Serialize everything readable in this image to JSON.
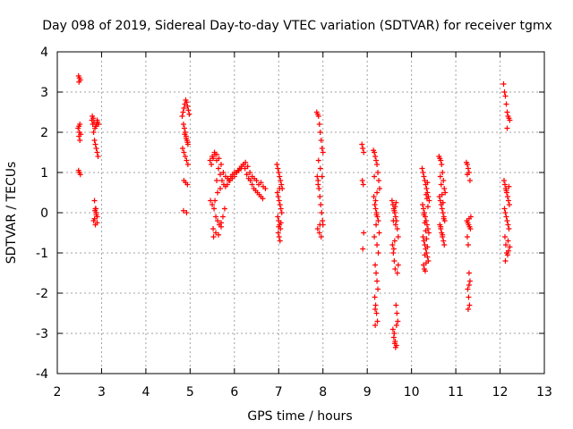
{
  "chart_data": {
    "type": "scatter",
    "title": "Day 098 of 2019, Sidereal Day-to-day VTEC variation (SDTVAR) for receiver tgmx",
    "xlabel": "GPS time / hours",
    "ylabel": "SDTVAR / TECUs",
    "xlim": [
      2,
      13
    ],
    "ylim": [
      -4,
      4
    ],
    "x_ticks": [
      "2",
      "3",
      "4",
      "5",
      "6",
      "7",
      "8",
      "9",
      "10",
      "11",
      "12",
      "13"
    ],
    "y_ticks": [
      "-4",
      "-3",
      "-2",
      "-1",
      "0",
      "1",
      "2",
      "3",
      "4"
    ],
    "grid": true,
    "marker": "plus",
    "color": "#ff0000",
    "series": [
      {
        "x": [
          2.48,
          2.5,
          2.52,
          2.49,
          2.51,
          2.47,
          2.5,
          2.53,
          2.49,
          2.51,
          2.48,
          2.5,
          2.52,
          2.49,
          2.78,
          2.8,
          2.82,
          2.84,
          2.86,
          2.88,
          2.9,
          2.92,
          2.79,
          2.81,
          2.83,
          2.85,
          2.87,
          2.89,
          2.91,
          2.84,
          2.86,
          2.88,
          2.9,
          2.82,
          2.86,
          2.9,
          2.85,
          2.88,
          2.84,
          2.87,
          2.9,
          2.93,
          4.82,
          4.84,
          4.86,
          4.88,
          4.9,
          4.92,
          4.94,
          4.96,
          4.98,
          4.85,
          4.87,
          4.89,
          4.91,
          4.93,
          4.95,
          4.83,
          4.86,
          4.89,
          4.92,
          4.95,
          4.88,
          4.91,
          4.94,
          4.86,
          4.9,
          4.94,
          4.85,
          4.92,
          5.45,
          5.5,
          5.55,
          5.6,
          5.65,
          5.7,
          5.75,
          5.8,
          5.85,
          5.9,
          5.95,
          6.0,
          6.05,
          6.1,
          6.15,
          6.2,
          6.25,
          6.3,
          6.35,
          6.4,
          6.45,
          6.5,
          6.55,
          6.6,
          6.65,
          6.7,
          5.48,
          5.52,
          5.56,
          5.6,
          5.64,
          5.68,
          5.72,
          5.76,
          5.8,
          5.84,
          5.88,
          5.92,
          5.96,
          6.0,
          6.04,
          6.08,
          6.12,
          6.16,
          6.2,
          6.24,
          6.28,
          6.32,
          6.36,
          6.4,
          6.44,
          6.48,
          6.52,
          6.56,
          6.6,
          6.64,
          5.5,
          5.54,
          5.58,
          5.62,
          5.66,
          5.7,
          5.74,
          5.78,
          5.52,
          5.58,
          5.64,
          5.7,
          5.56,
          5.62,
          5.68,
          5.46,
          5.53,
          5.6,
          6.96,
          6.98,
          7.0,
          7.02,
          7.04,
          7.06,
          7.08,
          6.97,
          6.99,
          7.01,
          7.03,
          7.05,
          7.07,
          6.98,
          7.0,
          7.02,
          7.04,
          6.99,
          7.01,
          7.03,
          7.05,
          7.0,
          7.02,
          7.86,
          7.88,
          7.9,
          7.92,
          7.94,
          7.96,
          7.98,
          8.0,
          7.87,
          7.89,
          7.91,
          7.93,
          7.95,
          7.97,
          7.99,
          7.88,
          7.92,
          7.96,
          8.0,
          7.9,
          7.94,
          7.98,
          7.89,
          7.93,
          8.88,
          8.9,
          8.92,
          8.89,
          8.91,
          8.9,
          8.92,
          9.14,
          9.16,
          9.18,
          9.2,
          9.22,
          9.24,
          9.26,
          9.28,
          9.15,
          9.17,
          9.19,
          9.21,
          9.23,
          9.25,
          9.27,
          9.16,
          9.18,
          9.2,
          9.22,
          9.24,
          9.17,
          9.19,
          9.21,
          9.23,
          9.18,
          9.2,
          9.22,
          9.16,
          9.19,
          9.22,
          9.25,
          9.18,
          9.21,
          9.56,
          9.58,
          9.6,
          9.62,
          9.64,
          9.66,
          9.68,
          9.7,
          9.57,
          9.59,
          9.61,
          9.63,
          9.65,
          9.67,
          9.69,
          9.58,
          9.6,
          9.62,
          9.64,
          9.66,
          9.59,
          9.61,
          9.63,
          9.65,
          9.6,
          9.62,
          9.64,
          9.61,
          9.63,
          9.66,
          9.68,
          9.7,
          10.24,
          10.26,
          10.28,
          10.3,
          10.32,
          10.34,
          10.36,
          10.38,
          10.4,
          10.25,
          10.27,
          10.29,
          10.31,
          10.33,
          10.35,
          10.37,
          10.39,
          10.26,
          10.28,
          10.3,
          10.32,
          10.34,
          10.36,
          10.38,
          10.27,
          10.29,
          10.31,
          10.33,
          10.35,
          10.37,
          10.28,
          10.3,
          10.32,
          10.34,
          10.36,
          10.3,
          10.33,
          10.36,
          10.62,
          10.64,
          10.66,
          10.68,
          10.7,
          10.72,
          10.74,
          10.76,
          10.63,
          10.65,
          10.67,
          10.69,
          10.71,
          10.73,
          10.75,
          10.64,
          10.66,
          10.68,
          10.7,
          10.72,
          10.74,
          10.65,
          10.67,
          10.69,
          10.71,
          10.73,
          10.66,
          10.7,
          11.24,
          11.26,
          11.28,
          11.3,
          11.32,
          11.34,
          11.25,
          11.27,
          11.29,
          11.31,
          11.33,
          11.26,
          11.28,
          11.3,
          11.32,
          11.27,
          11.29,
          11.31,
          11.28,
          11.3,
          11.26,
          11.3,
          12.08,
          12.1,
          12.12,
          12.14,
          12.16,
          12.18,
          12.2,
          12.22,
          12.09,
          12.11,
          12.13,
          12.15,
          12.17,
          12.19,
          12.21,
          12.1,
          12.12,
          12.14,
          12.16,
          12.18,
          12.2,
          12.11,
          12.13,
          12.15,
          12.17,
          12.19,
          12.12,
          12.16,
          12.2,
          12.14,
          12.18,
          12.22
        ],
        "y": [
          3.4,
          3.35,
          3.3,
          3.25,
          2.2,
          2.1,
          2.0,
          1.95,
          1.9,
          1.8,
          1.05,
          1.0,
          0.95,
          2.15,
          2.3,
          2.2,
          2.0,
          1.8,
          1.7,
          1.6,
          1.5,
          1.4,
          2.4,
          2.35,
          2.25,
          2.1,
          2.15,
          2.2,
          2.25,
          0.3,
          0.1,
          0.0,
          -0.1,
          -0.2,
          -0.3,
          -0.25,
          0.05,
          -0.05,
          -0.15,
          0.1,
          2.3,
          2.2,
          2.4,
          2.5,
          2.6,
          2.7,
          2.8,
          2.75,
          2.65,
          2.55,
          2.45,
          2.2,
          2.1,
          2.0,
          1.9,
          1.8,
          1.7,
          1.6,
          1.5,
          1.4,
          1.3,
          1.2,
          1.95,
          1.85,
          1.75,
          0.8,
          0.75,
          0.7,
          0.05,
          0.0,
          1.3,
          1.4,
          1.5,
          1.45,
          1.35,
          1.2,
          1.0,
          0.9,
          0.85,
          0.8,
          0.85,
          0.9,
          1.0,
          1.05,
          1.1,
          1.2,
          1.25,
          1.15,
          1.0,
          0.9,
          0.85,
          0.8,
          0.7,
          0.75,
          0.65,
          0.6,
          1.2,
          1.35,
          1.45,
          1.3,
          1.1,
          0.95,
          0.8,
          0.7,
          0.65,
          0.7,
          0.8,
          0.9,
          0.95,
          1.0,
          1.0,
          1.05,
          1.1,
          1.15,
          1.2,
          1.1,
          0.95,
          0.85,
          0.8,
          0.7,
          0.6,
          0.55,
          0.5,
          0.45,
          0.4,
          0.35,
          0.2,
          0.1,
          -0.1,
          -0.2,
          -0.3,
          -0.25,
          -0.1,
          0.1,
          -0.4,
          -0.5,
          -0.55,
          -0.35,
          0.3,
          0.5,
          0.6,
          0.3,
          -0.6,
          0.8,
          1.2,
          1.1,
          1.0,
          0.9,
          0.8,
          0.7,
          0.6,
          0.5,
          0.4,
          0.3,
          0.2,
          0.1,
          0.0,
          -0.1,
          -0.2,
          -0.3,
          -0.4,
          -0.5,
          -0.6,
          -0.7,
          -0.25,
          -0.35,
          0.6,
          2.5,
          2.45,
          2.4,
          2.2,
          2.0,
          1.8,
          1.6,
          1.5,
          0.9,
          0.8,
          0.6,
          0.4,
          0.2,
          0.0,
          -0.2,
          -0.4,
          -0.5,
          -0.6,
          -0.3,
          1.3,
          1.1,
          0.9,
          0.7,
          -0.3,
          1.7,
          1.6,
          1.5,
          0.8,
          0.7,
          -0.9,
          -0.5,
          1.55,
          1.5,
          1.4,
          1.3,
          1.2,
          1.0,
          0.8,
          0.6,
          0.4,
          0.2,
          0.1,
          0.0,
          -0.1,
          -0.2,
          -0.5,
          -0.6,
          -1.3,
          -1.5,
          -1.7,
          -1.9,
          -2.1,
          -2.3,
          -2.5,
          -2.7,
          -2.8,
          -0.3,
          0.5,
          0.9,
          0.3,
          -0.8,
          -1.0,
          -2.4,
          -0.05,
          0.3,
          0.2,
          0.1,
          0.0,
          -0.1,
          -0.2,
          -0.4,
          -0.6,
          -0.8,
          -1.0,
          -1.2,
          -1.4,
          -2.3,
          -2.5,
          -2.7,
          -2.9,
          -3.1,
          -3.25,
          -3.35,
          -3.3,
          -0.2,
          0.05,
          0.15,
          0.25,
          -0.9,
          -0.7,
          -0.3,
          -3.0,
          -3.2,
          -2.8,
          -1.5,
          -1.3,
          1.1,
          1.0,
          0.9,
          0.8,
          0.7,
          0.6,
          0.5,
          0.4,
          0.3,
          0.2,
          0.1,
          0.0,
          -0.1,
          -0.2,
          -0.3,
          -0.4,
          -0.5,
          -0.6,
          -0.7,
          -0.8,
          -0.9,
          -1.0,
          -1.1,
          -1.2,
          -1.3,
          -1.4,
          -1.45,
          0.45,
          0.35,
          0.15,
          -0.05,
          -0.25,
          -0.45,
          -0.65,
          -0.85,
          -1.05,
          -1.25,
          0.75,
          1.4,
          1.35,
          1.3,
          1.2,
          1.0,
          0.8,
          0.6,
          0.5,
          0.4,
          0.3,
          0.2,
          0.1,
          0.0,
          -0.1,
          -0.2,
          -0.3,
          -0.4,
          -0.5,
          -0.6,
          -0.7,
          -0.8,
          0.9,
          0.7,
          0.45,
          0.25,
          -0.15,
          -0.35,
          -0.55,
          1.25,
          1.2,
          1.1,
          1.0,
          0.8,
          -0.1,
          -0.2,
          -0.25,
          -0.3,
          -0.35,
          -0.4,
          -0.6,
          -0.8,
          -1.5,
          -1.7,
          -1.9,
          -2.1,
          -2.3,
          -2.4,
          -0.15,
          0.95,
          -1.8,
          3.2,
          3.0,
          2.9,
          2.7,
          2.5,
          2.4,
          2.35,
          2.3,
          0.8,
          0.7,
          0.6,
          0.5,
          0.4,
          0.3,
          0.2,
          0.1,
          0.0,
          -0.1,
          -0.2,
          -0.3,
          -0.4,
          -0.6,
          -0.8,
          -1.0,
          -1.05,
          -0.95,
          -1.2,
          2.1,
          0.65,
          0.55,
          -0.7,
          -0.85
        ]
      }
    ]
  }
}
